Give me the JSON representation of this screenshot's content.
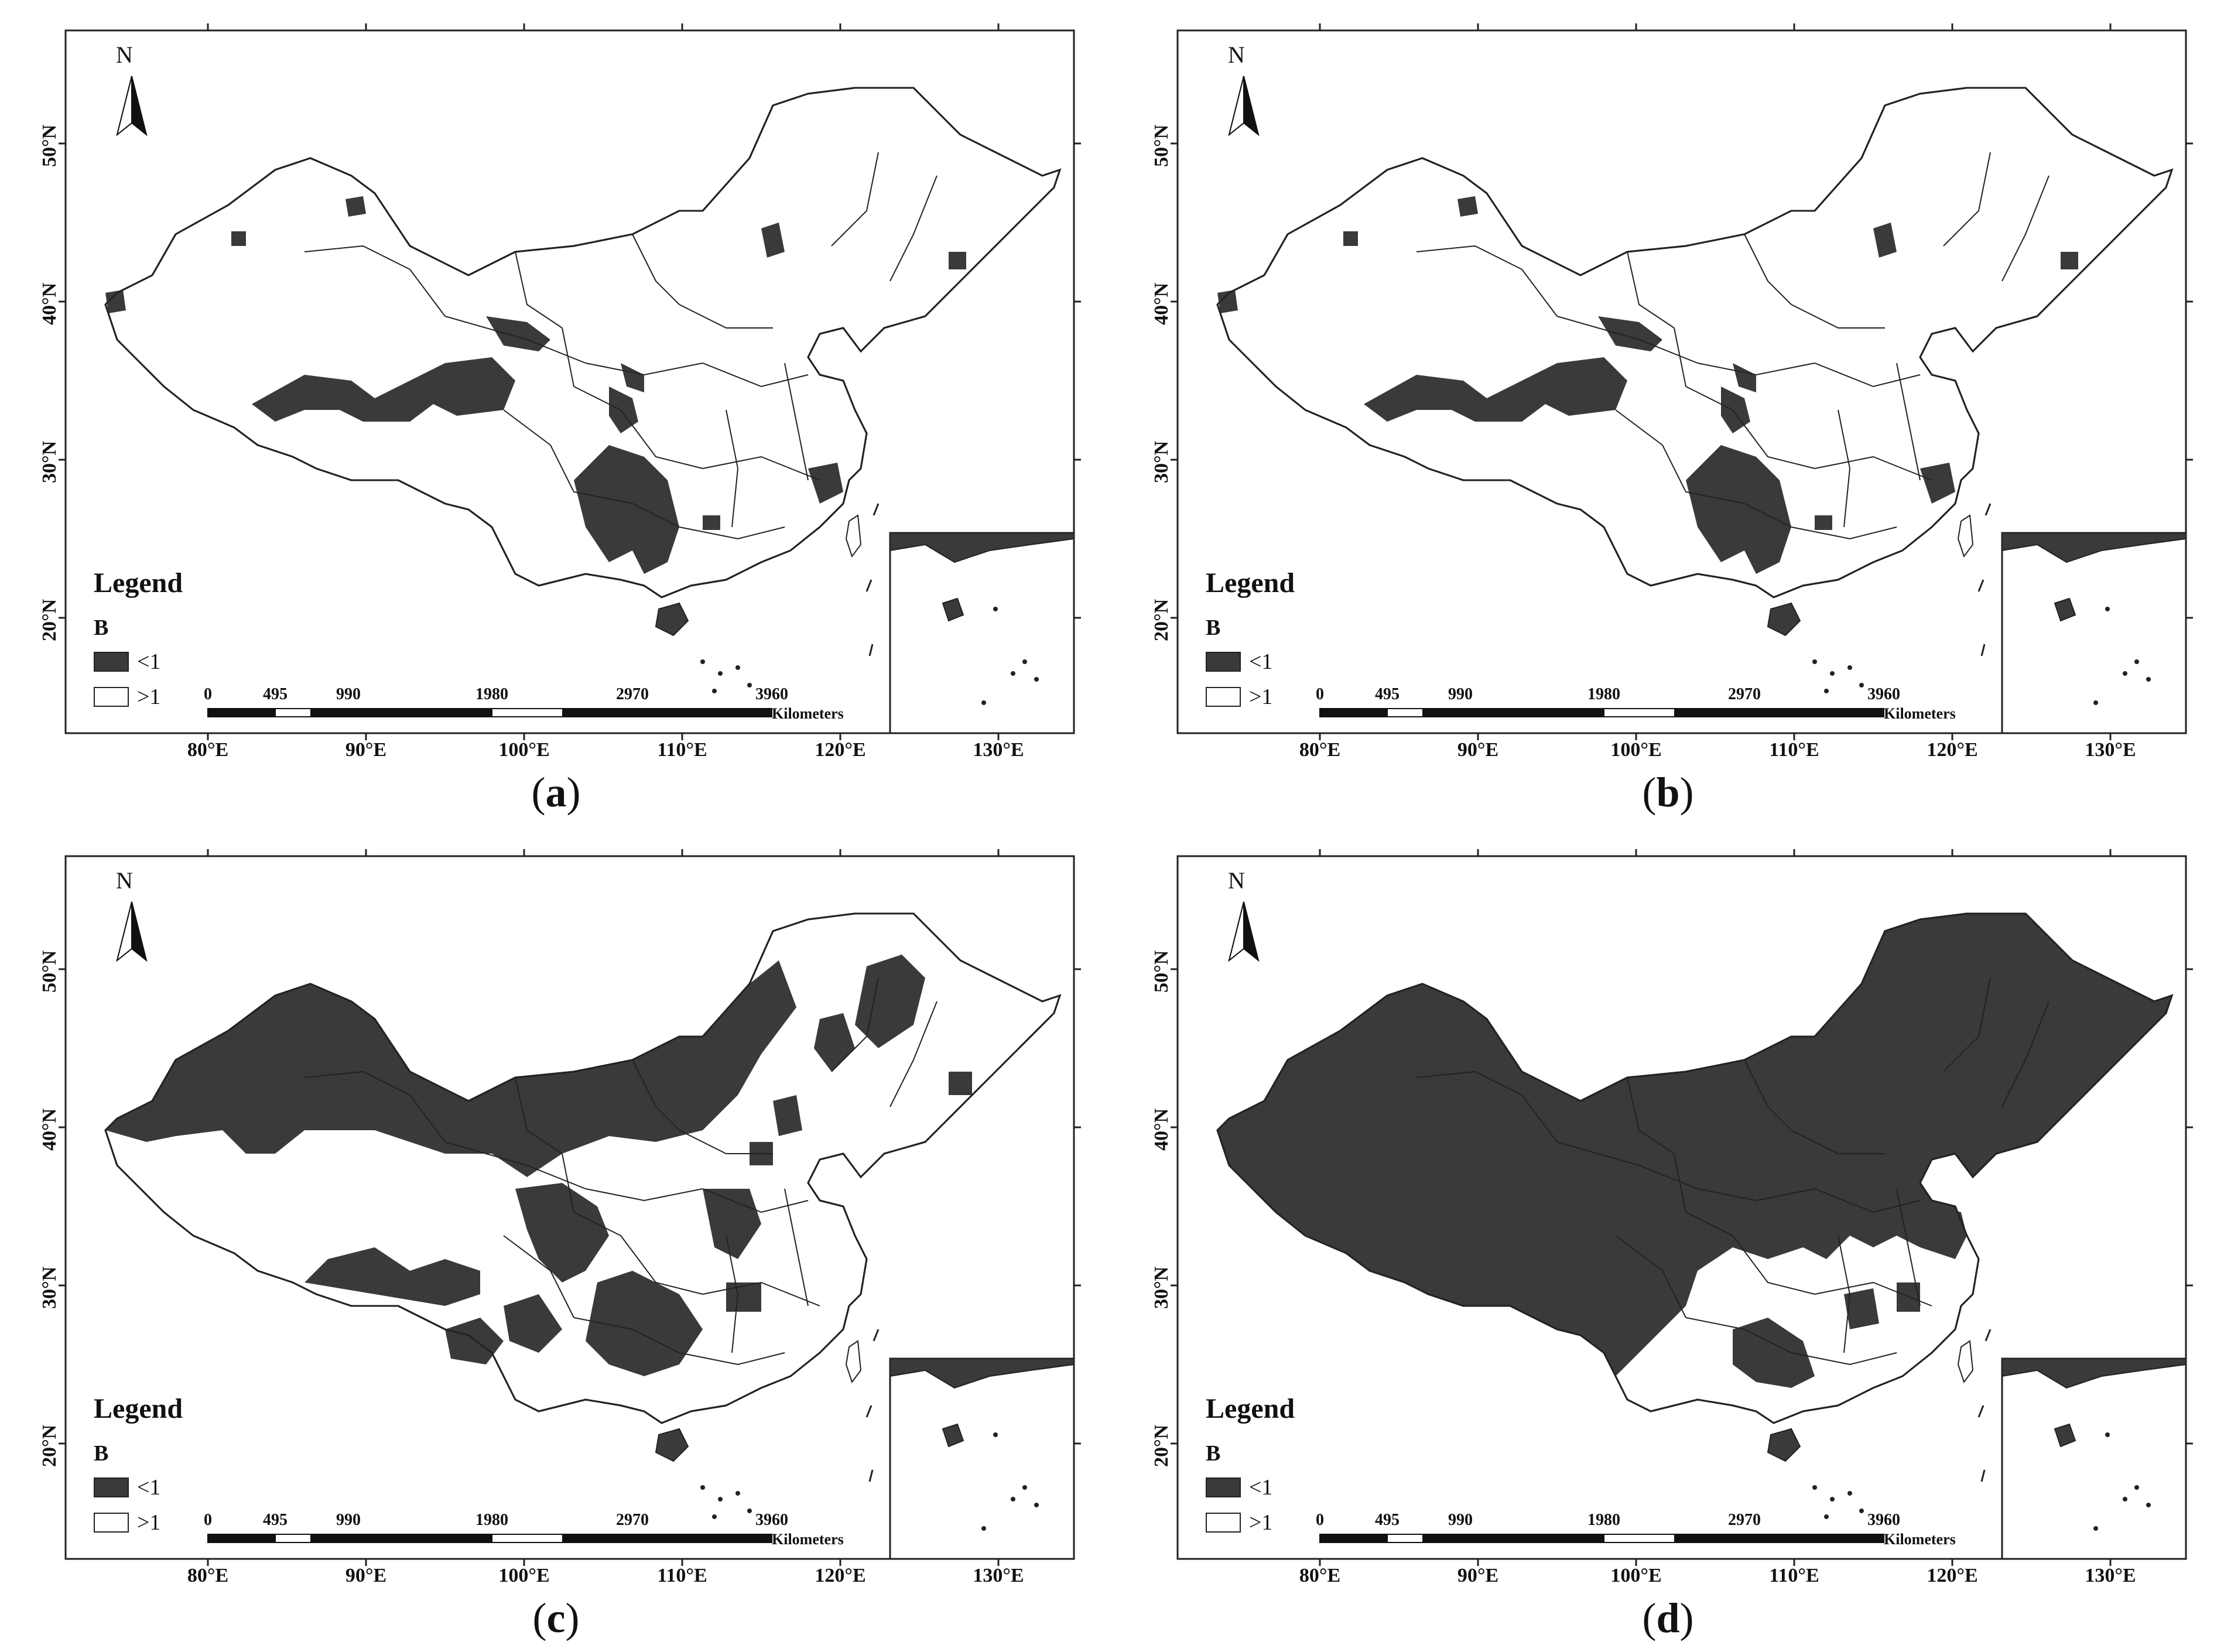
{
  "panels": [
    {
      "id": "a",
      "label": "a",
      "extent": "sparse"
    },
    {
      "id": "b",
      "label": "b",
      "extent": "sparse"
    },
    {
      "id": "c",
      "label": "c",
      "extent": "medium"
    },
    {
      "id": "d",
      "label": "d",
      "extent": "extensive"
    }
  ],
  "legend": {
    "title": "Legend",
    "field": "B",
    "classes": [
      {
        "label": "<1",
        "color": "#3a3a3a"
      },
      {
        "label": ">1",
        "color": "#ffffff"
      }
    ]
  },
  "north_label": "N",
  "lat_labels": [
    "50°N",
    "40°N",
    "30°N",
    "20°N"
  ],
  "lon_labels": [
    "80°E",
    "90°E",
    "100°E",
    "110°E",
    "120°E",
    "130°E"
  ],
  "scale": {
    "ticks": [
      "0",
      "495",
      "990",
      "1980",
      "2970",
      "3960"
    ],
    "unit": "Kilometers"
  },
  "colors": {
    "fill_low": "#3a3a3a",
    "fill_high": "#ffffff",
    "outline": "#222222"
  },
  "icons": [
    "north-arrow-icon"
  ]
}
